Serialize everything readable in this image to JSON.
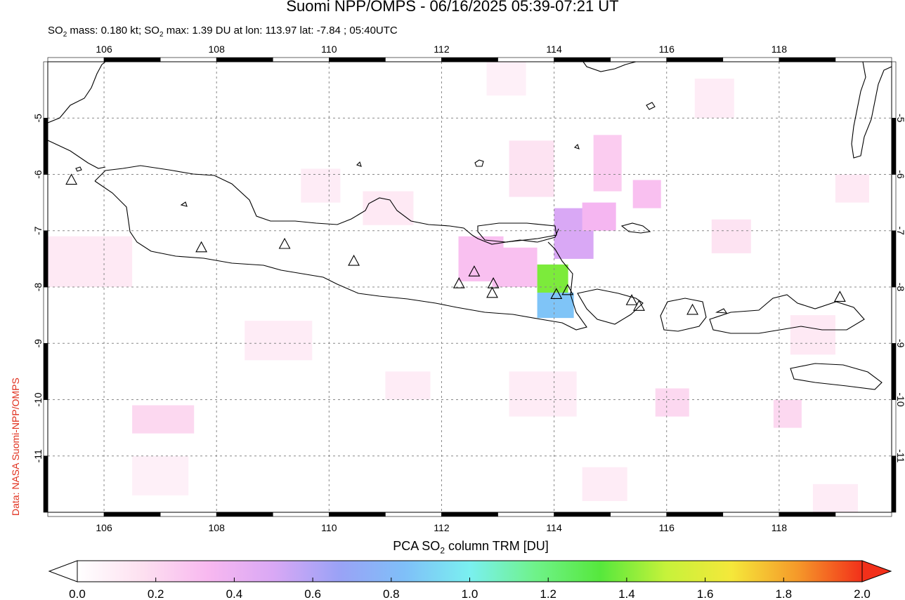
{
  "title": "Suomi NPP/OMPS - 06/16/2025 05:39-07:21 UT",
  "subtitle": {
    "mass_prefix": "SO",
    "mass_sub": "2",
    "mass_text": " mass: 0.180 kt; SO",
    "max_sub": "2",
    "max_text": " max: 1.39 DU at lon: 113.97 lat: -7.84 ; 05:40UTC"
  },
  "credit": "Data: NASA Suomi-NPP/OMPS",
  "map": {
    "lon_range": [
      105,
      120
    ],
    "lat_range": [
      -12,
      -4
    ],
    "lon_ticks": [
      "106",
      "108",
      "110",
      "112",
      "114",
      "116",
      "118"
    ],
    "lat_ticks": [
      "-5",
      "-6",
      "-7",
      "-8",
      "-9",
      "-10",
      "-11"
    ],
    "grid": "dotted",
    "volcanoes": [
      {
        "lon": 105.42,
        "lat": -6.1
      },
      {
        "lon": 107.73,
        "lat": -7.3
      },
      {
        "lon": 109.21,
        "lat": -7.24
      },
      {
        "lon": 110.44,
        "lat": -7.54
      },
      {
        "lon": 112.31,
        "lat": -7.94
      },
      {
        "lon": 112.58,
        "lat": -7.73
      },
      {
        "lon": 112.92,
        "lat": -7.94
      },
      {
        "lon": 112.9,
        "lat": -8.11
      },
      {
        "lon": 114.04,
        "lat": -8.13
      },
      {
        "lon": 114.24,
        "lat": -8.06
      },
      {
        "lon": 115.38,
        "lat": -8.24
      },
      {
        "lon": 115.51,
        "lat": -8.34
      },
      {
        "lon": 116.46,
        "lat": -8.41
      },
      {
        "lon": 119.08,
        "lat": -8.18
      }
    ],
    "so2_pixels": [
      {
        "lon0": 113.7,
        "lat0": -7.6,
        "lon1": 114.25,
        "lat1": -8.1,
        "du": 1.39
      },
      {
        "lon0": 113.7,
        "lat0": -8.1,
        "lon1": 114.35,
        "lat1": -8.55,
        "du": 0.85
      },
      {
        "lon0": 114.0,
        "lat0": -6.6,
        "lon1": 114.7,
        "lat1": -7.5,
        "du": 0.5
      },
      {
        "lon0": 114.5,
        "lat0": -6.5,
        "lon1": 115.1,
        "lat1": -7.0,
        "du": 0.35
      },
      {
        "lon0": 112.3,
        "lat0": -7.1,
        "lon1": 113.1,
        "lat1": -7.9,
        "du": 0.3
      },
      {
        "lon0": 112.9,
        "lat0": -7.3,
        "lon1": 113.7,
        "lat1": -8.0,
        "du": 0.3
      },
      {
        "lon0": 115.4,
        "lat0": -6.1,
        "lon1": 115.9,
        "lat1": -6.6,
        "du": 0.3
      },
      {
        "lon0": 114.7,
        "lat0": -5.3,
        "lon1": 115.2,
        "lat1": -6.3,
        "du": 0.25
      },
      {
        "lon0": 113.2,
        "lat0": -5.4,
        "lon1": 114.0,
        "lat1": -6.4,
        "du": 0.15
      },
      {
        "lon0": 106.5,
        "lat0": -10.1,
        "lon1": 107.6,
        "lat1": -10.6,
        "du": 0.2
      },
      {
        "lon0": 117.9,
        "lat0": -10.0,
        "lon1": 118.4,
        "lat1": -10.5,
        "du": 0.2
      },
      {
        "lon0": 116.8,
        "lat0": -6.8,
        "lon1": 117.5,
        "lat1": -7.4,
        "du": 0.15
      },
      {
        "lon0": 109.5,
        "lat0": -5.9,
        "lon1": 110.2,
        "lat1": -6.5,
        "du": 0.1
      },
      {
        "lon0": 110.6,
        "lat0": -6.3,
        "lon1": 111.5,
        "lat1": -6.9,
        "du": 0.12
      },
      {
        "lon0": 105.0,
        "lat0": -7.1,
        "lon1": 106.5,
        "lat1": -8.0,
        "du": 0.12
      },
      {
        "lon0": 115.8,
        "lat0": -9.8,
        "lon1": 116.4,
        "lat1": -10.3,
        "du": 0.2
      },
      {
        "lon0": 108.5,
        "lat0": -8.6,
        "lon1": 109.7,
        "lat1": -9.3,
        "du": 0.1
      },
      {
        "lon0": 118.2,
        "lat0": -8.5,
        "lon1": 119.0,
        "lat1": -9.2,
        "du": 0.12
      },
      {
        "lon0": 119.0,
        "lat0": -6.0,
        "lon1": 119.6,
        "lat1": -6.5,
        "du": 0.12
      },
      {
        "lon0": 111.0,
        "lat0": -9.5,
        "lon1": 111.8,
        "lat1": -10.0,
        "du": 0.1
      },
      {
        "lon0": 113.2,
        "lat0": -9.5,
        "lon1": 114.4,
        "lat1": -10.3,
        "du": 0.1
      },
      {
        "lon0": 114.5,
        "lat0": -11.2,
        "lon1": 115.3,
        "lat1": -11.8,
        "du": 0.1
      },
      {
        "lon0": 106.5,
        "lat0": -11.0,
        "lon1": 107.5,
        "lat1": -11.7,
        "du": 0.08
      },
      {
        "lon0": 118.6,
        "lat0": -11.5,
        "lon1": 119.4,
        "lat1": -12.0,
        "du": 0.1
      },
      {
        "lon0": 116.5,
        "lat0": -4.3,
        "lon1": 117.2,
        "lat1": -5.0,
        "du": 0.1
      },
      {
        "lon0": 112.8,
        "lat0": -4.0,
        "lon1": 113.5,
        "lat1": -4.6,
        "du": 0.08
      }
    ]
  },
  "colorbar": {
    "title_prefix": "PCA SO",
    "title_sub": "2",
    "title_suffix": " column TRM [DU]",
    "ticks": [
      "0.0",
      "0.2",
      "0.4",
      "0.6",
      "0.8",
      "1.0",
      "1.2",
      "1.4",
      "1.6",
      "1.8",
      "2.0"
    ],
    "range": [
      0,
      2
    ],
    "colors": [
      "#ffffff",
      "#fde0f0",
      "#f8b8f0",
      "#d9a8f5",
      "#9aa2f6",
      "#7fbff8",
      "#7af0f0",
      "#6ff28a",
      "#56e83c",
      "#c6f23a",
      "#f5e83a",
      "#f59a2a",
      "#f2301a"
    ]
  }
}
